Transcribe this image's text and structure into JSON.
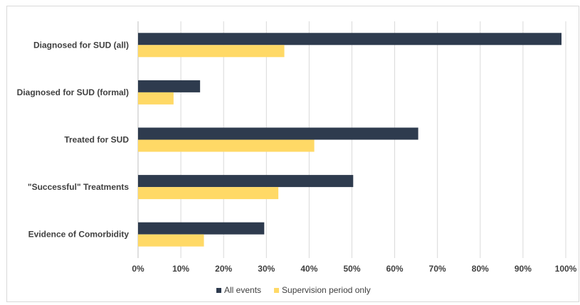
{
  "chart_data": {
    "type": "bar",
    "orientation": "horizontal",
    "categories": [
      "Diagnosed for SUD (all)",
      "Diagnosed for SUD (formal)",
      "Treated for SUD",
      "\"Successful\" Treatments",
      "Evidence of Comorbidity"
    ],
    "series": [
      {
        "name": "All events",
        "color": "#2e3b4e",
        "values": [
          99,
          14.5,
          65.5,
          50.3,
          29.5
        ]
      },
      {
        "name": "Supervision period only",
        "color": "#ffd966",
        "values": [
          34.2,
          8.3,
          41.2,
          32.8,
          15.4
        ]
      }
    ],
    "xlim": [
      0,
      100
    ],
    "xticks": [
      "0%",
      "10%",
      "20%",
      "30%",
      "40%",
      "50%",
      "60%",
      "70%",
      "80%",
      "90%",
      "100%"
    ],
    "grid": "vertical",
    "legend_position": "bottom",
    "title": "",
    "xlabel": "",
    "ylabel": ""
  }
}
